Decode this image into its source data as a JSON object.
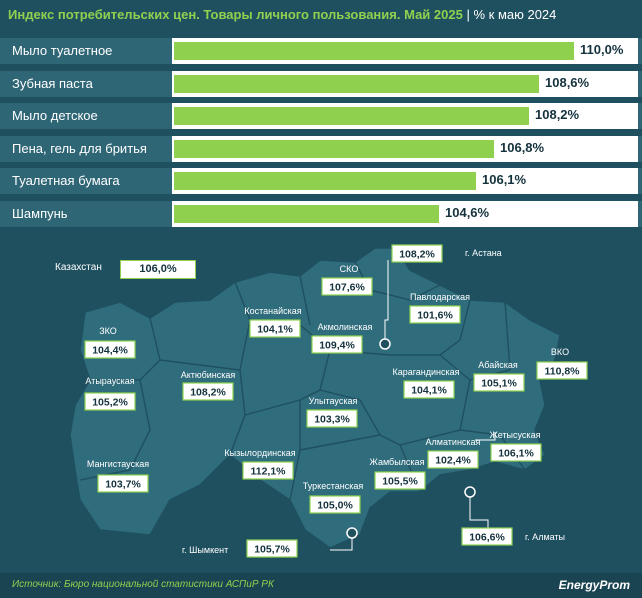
{
  "header": {
    "title": "Индекс потребительских цен. Товары личного пользования. Май 2025",
    "separator": "|",
    "subtitle": "% к маю 2024"
  },
  "chart_data": {
    "type": "bar",
    "orientation": "horizontal",
    "categories": [
      "Мыло туалетное",
      "Зубная паста",
      "Мыло детское",
      "Пена, гель для бритья",
      "Туалетная бумага",
      "Шампунь"
    ],
    "values": [
      110.0,
      108.6,
      108.2,
      106.8,
      106.1,
      104.6
    ],
    "value_labels": [
      "110,0%",
      "108,6%",
      "108,2%",
      "106,8%",
      "106,1%",
      "104,6%"
    ],
    "xlim": [
      100,
      110
    ],
    "colors": {
      "bar": "#8fd14f",
      "background": "#1f5060"
    }
  },
  "map": {
    "country_label": "Казахстан",
    "country_value": "106,0%",
    "regions": [
      {
        "name": "ЗКО",
        "value": "104,4%"
      },
      {
        "name": "Атырауская",
        "value": "105,2%"
      },
      {
        "name": "Мангистауская",
        "value": "103,7%"
      },
      {
        "name": "Актюбинская",
        "value": "108,2%"
      },
      {
        "name": "Костанайская",
        "value": "104,1%"
      },
      {
        "name": "СКО",
        "value": "107,6%"
      },
      {
        "name": "Акмолинская",
        "value": "109,4%"
      },
      {
        "name": "г. Астана",
        "value": "108,2%"
      },
      {
        "name": "Павлодарская",
        "value": "101,6%"
      },
      {
        "name": "ВКО",
        "value": "110,8%"
      },
      {
        "name": "Абайская",
        "value": "105,1%"
      },
      {
        "name": "Карагандинская",
        "value": "104,1%"
      },
      {
        "name": "Улытауская",
        "value": "103,3%"
      },
      {
        "name": "Кызылординская",
        "value": "112,1%"
      },
      {
        "name": "Жетысуская",
        "value": "106,1%"
      },
      {
        "name": "Алматинская",
        "value": "102,4%"
      },
      {
        "name": "Жамбылская",
        "value": "105,5%"
      },
      {
        "name": "Туркестанская",
        "value": "105,0%"
      },
      {
        "name": "г. Шымкент",
        "value": "105,7%"
      },
      {
        "name": "г. Алматы",
        "value": "106,6%"
      }
    ]
  },
  "footer": {
    "source": "Источник: Бюро национальной статистики АСПиР РК",
    "brand": "EnergyProm"
  }
}
